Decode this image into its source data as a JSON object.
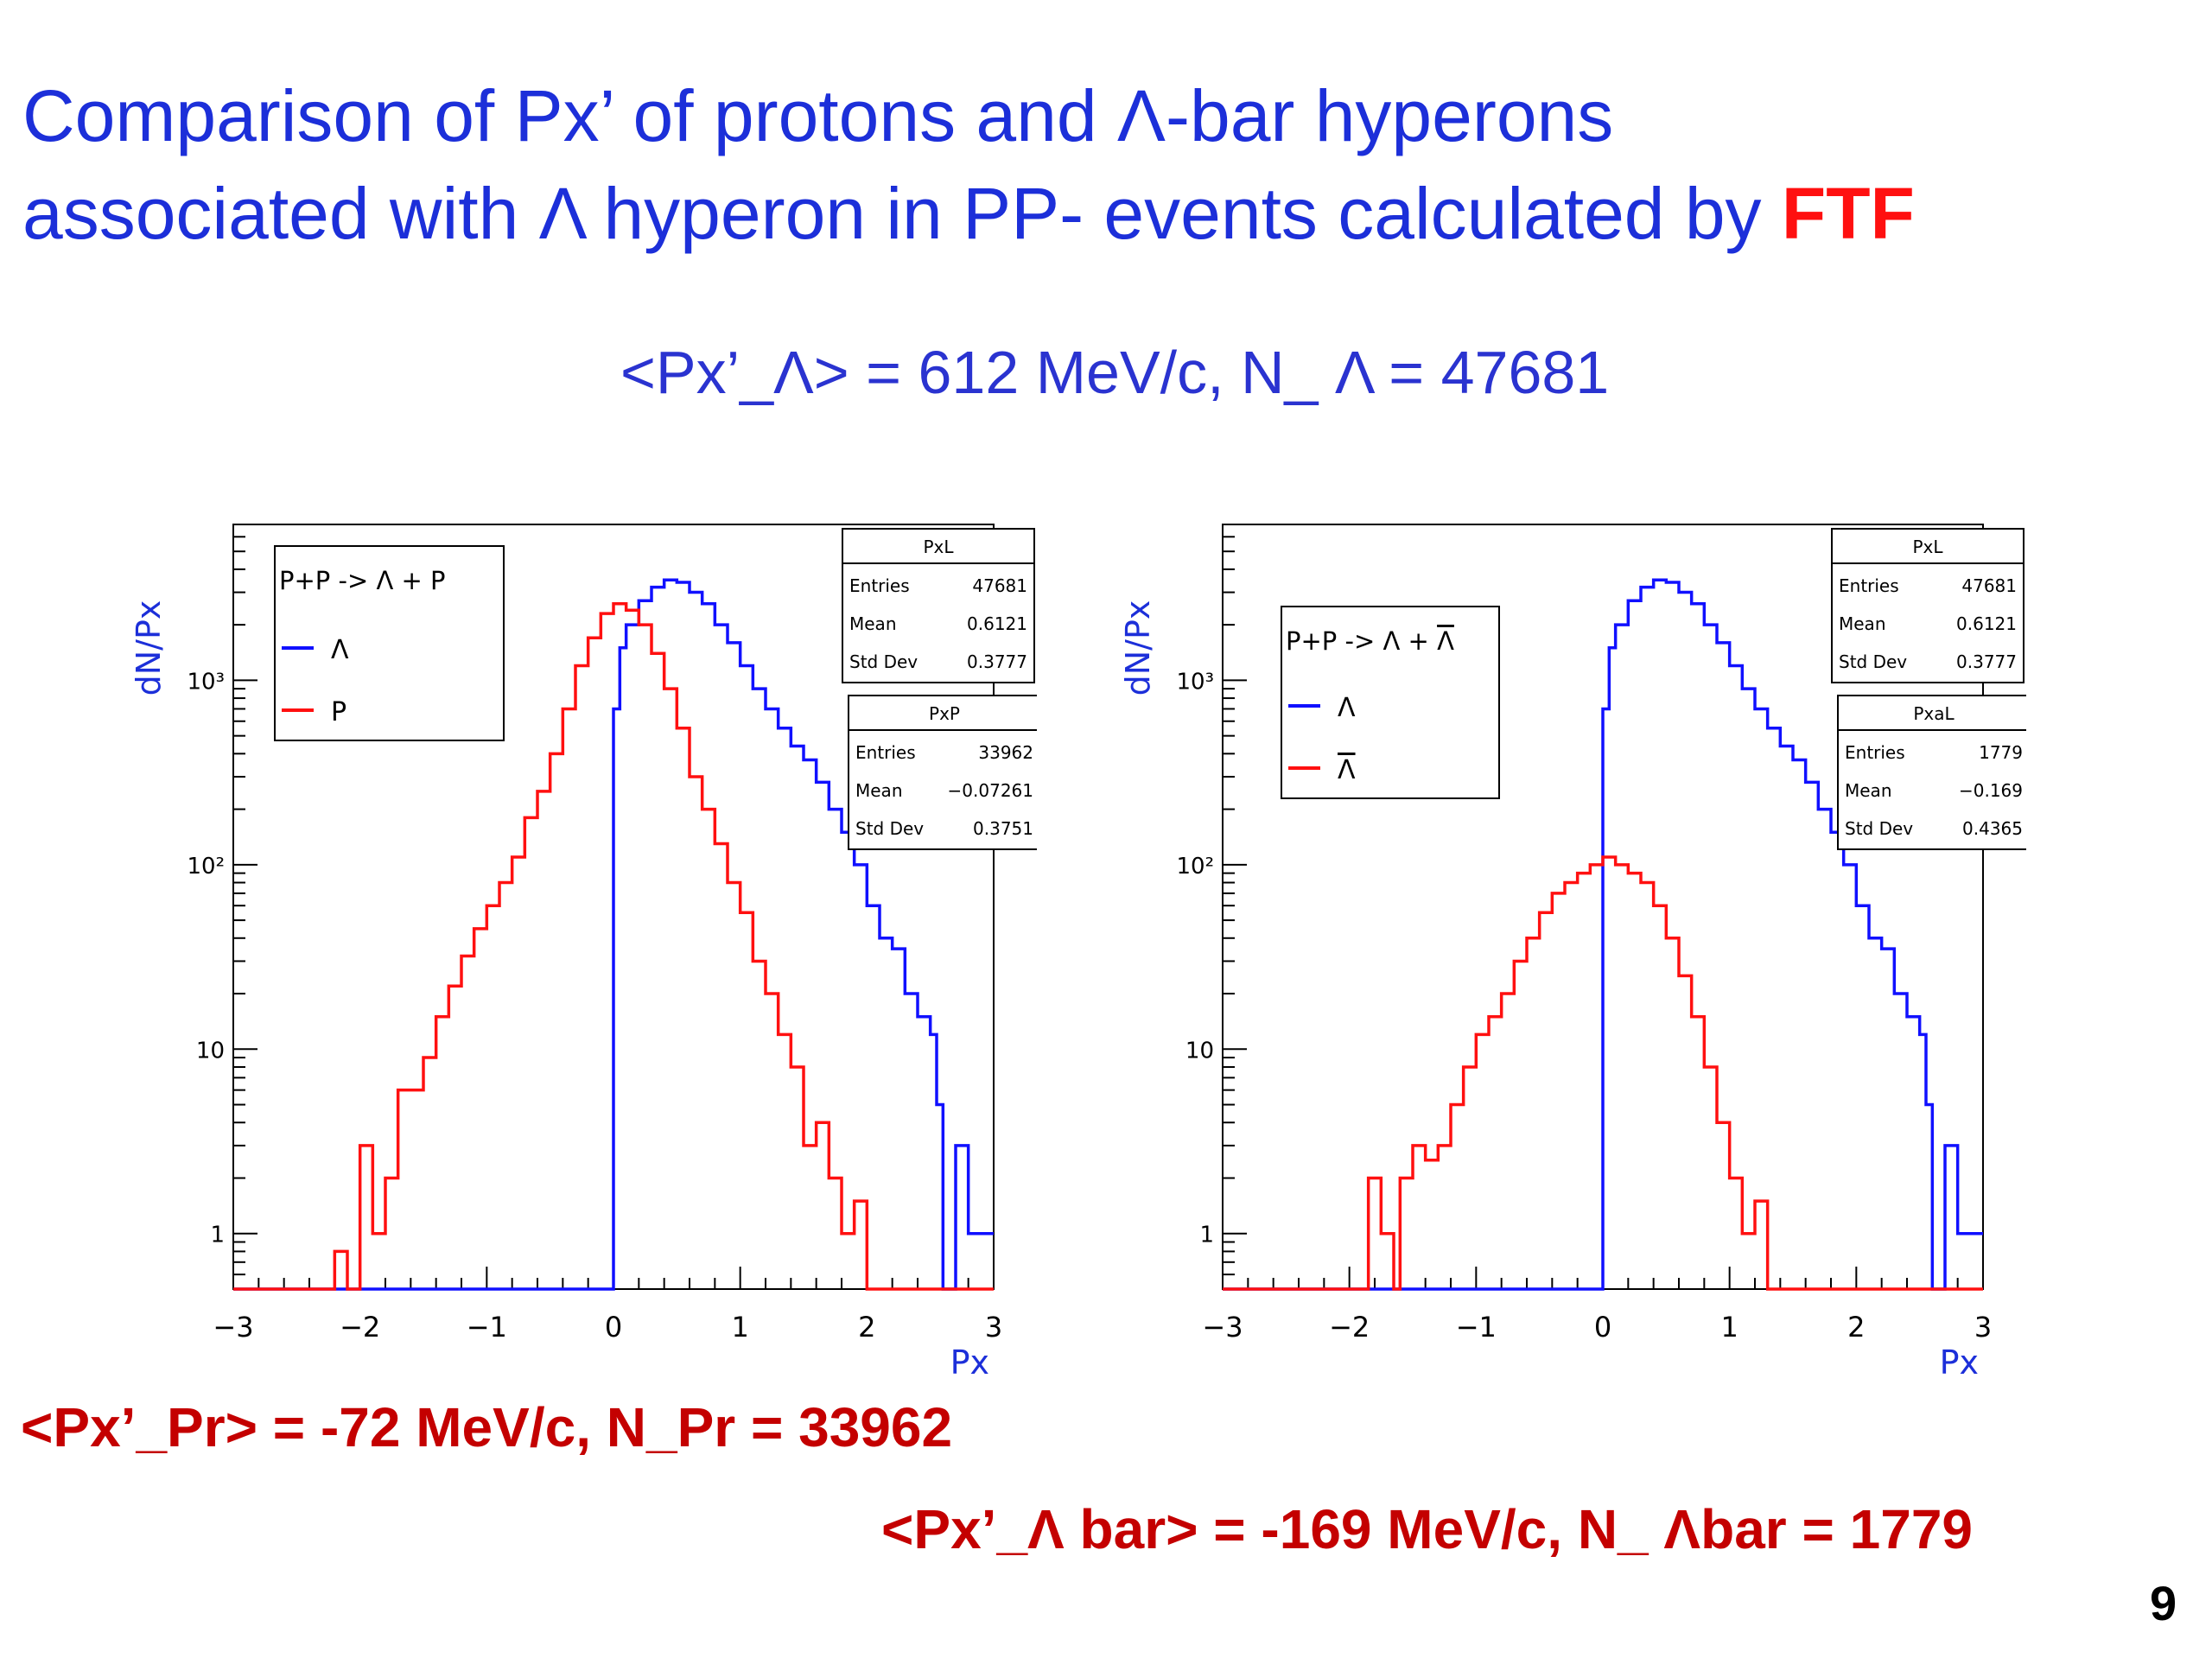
{
  "slide": {
    "title_line1": "Comparison of Px’ of protons and Λ-bar hyperons",
    "title_line2_prefix": "associated with Λ  hyperon  in PP- events calculated by ",
    "title_line2_highlight": "FTF",
    "lambda_summary": "<Px’_Λ> = 612 MeV/c,    N_ Λ = 47681",
    "proton_summary": "<Px’_Pr> = -72 MeV/c,  N_Pr = 33962",
    "lambdabar_summary": "<Px’_Λ bar> = -169 MeV/c,    N_ Λbar = 1779",
    "page_number": "9"
  },
  "colors": {
    "title_blue": "#1c2fd9",
    "highlight_red": "#ff1010",
    "stat_red": "#c40000",
    "lambda_line": "#1010ff",
    "second_line": "#ff1010"
  },
  "chart_data": [
    {
      "type": "line",
      "title": "",
      "xlabel": "Px",
      "ylabel": "dN/Px",
      "xlim": [
        -3,
        3
      ],
      "ylim": [
        0.5,
        7000
      ],
      "yscale": "log",
      "x_ticks": [
        "−3",
        "−2",
        "−1",
        "0",
        "1",
        "2",
        "3"
      ],
      "y_ticks": [
        {
          "value": 1,
          "label": "1"
        },
        {
          "value": 10,
          "label": "10"
        },
        {
          "value": 100,
          "label": "10²"
        },
        {
          "value": 1000,
          "label": "10³"
        }
      ],
      "legend": {
        "position": "top-left",
        "header": "P+P -> Λ + P",
        "entries": [
          {
            "label": "Λ",
            "color": "#1010ff"
          },
          {
            "label": "P",
            "color": "#ff1010"
          }
        ]
      },
      "stat_boxes": [
        {
          "name": "PxL",
          "rows": [
            [
              "Entries",
              "47681"
            ],
            [
              "Mean",
              "0.6121"
            ],
            [
              "Std Dev",
              "0.3777"
            ]
          ]
        },
        {
          "name": "PxP",
          "rows": [
            [
              "Entries",
              "33962"
            ],
            [
              "Mean",
              "−0.07261"
            ],
            [
              "Std Dev",
              "0.3751"
            ]
          ]
        }
      ],
      "series": [
        {
          "name": "Λ",
          "color": "#1010ff",
          "points": [
            [
              -3,
              0.5
            ],
            [
              0,
              0.5
            ],
            [
              0,
              700
            ],
            [
              0.05,
              1500
            ],
            [
              0.1,
              2000
            ],
            [
              0.2,
              2700
            ],
            [
              0.3,
              3200
            ],
            [
              0.4,
              3500
            ],
            [
              0.5,
              3400
            ],
            [
              0.6,
              3000
            ],
            [
              0.7,
              2600
            ],
            [
              0.8,
              2000
            ],
            [
              0.9,
              1600
            ],
            [
              1.0,
              1200
            ],
            [
              1.1,
              900
            ],
            [
              1.2,
              700
            ],
            [
              1.3,
              550
            ],
            [
              1.4,
              440
            ],
            [
              1.5,
              370
            ],
            [
              1.6,
              280
            ],
            [
              1.7,
              200
            ],
            [
              1.8,
              150
            ],
            [
              1.9,
              100
            ],
            [
              2.0,
              60
            ],
            [
              2.1,
              40
            ],
            [
              2.2,
              35
            ],
            [
              2.3,
              20
            ],
            [
              2.4,
              15
            ],
            [
              2.5,
              12
            ],
            [
              2.55,
              5
            ],
            [
              2.6,
              0.5
            ],
            [
              2.7,
              3
            ],
            [
              2.8,
              1
            ],
            [
              3.0,
              1
            ]
          ]
        },
        {
          "name": "P",
          "color": "#ff1010",
          "points": [
            [
              -3,
              0.5
            ],
            [
              -2.3,
              0.5
            ],
            [
              -2.2,
              0.8
            ],
            [
              -2.1,
              0.5
            ],
            [
              -2.0,
              3
            ],
            [
              -1.9,
              1
            ],
            [
              -1.8,
              2
            ],
            [
              -1.7,
              6
            ],
            [
              -1.6,
              6
            ],
            [
              -1.5,
              9
            ],
            [
              -1.4,
              15
            ],
            [
              -1.3,
              22
            ],
            [
              -1.2,
              32
            ],
            [
              -1.1,
              45
            ],
            [
              -1.0,
              60
            ],
            [
              -0.9,
              80
            ],
            [
              -0.8,
              110
            ],
            [
              -0.7,
              180
            ],
            [
              -0.6,
              250
            ],
            [
              -0.5,
              400
            ],
            [
              -0.4,
              700
            ],
            [
              -0.3,
              1200
            ],
            [
              -0.2,
              1700
            ],
            [
              -0.1,
              2300
            ],
            [
              0.0,
              2600
            ],
            [
              0.1,
              2400
            ],
            [
              0.2,
              2000
            ],
            [
              0.3,
              1400
            ],
            [
              0.4,
              900
            ],
            [
              0.5,
              550
            ],
            [
              0.6,
              300
            ],
            [
              0.7,
              200
            ],
            [
              0.8,
              130
            ],
            [
              0.9,
              80
            ],
            [
              1.0,
              55
            ],
            [
              1.1,
              30
            ],
            [
              1.2,
              20
            ],
            [
              1.3,
              12
            ],
            [
              1.4,
              8
            ],
            [
              1.5,
              3
            ],
            [
              1.6,
              4
            ],
            [
              1.7,
              2
            ],
            [
              1.8,
              1
            ],
            [
              1.9,
              1.5
            ],
            [
              2.0,
              0.5
            ],
            [
              3.0,
              0.5
            ]
          ]
        }
      ]
    },
    {
      "type": "line",
      "title": "",
      "xlabel": "Px",
      "ylabel": "dN/Px",
      "xlim": [
        -3,
        3
      ],
      "ylim": [
        0.5,
        7000
      ],
      "yscale": "log",
      "x_ticks": [
        "−3",
        "−2",
        "−1",
        "0",
        "1",
        "2",
        "3"
      ],
      "y_ticks": [
        {
          "value": 1,
          "label": "1"
        },
        {
          "value": 10,
          "label": "10"
        },
        {
          "value": 100,
          "label": "10²"
        },
        {
          "value": 1000,
          "label": "10³"
        }
      ],
      "legend": {
        "position": "top-left",
        "header_prefix": "P+P -> Λ + ",
        "header_bar_symbol": "Λ",
        "entries": [
          {
            "label": "Λ",
            "color": "#1010ff",
            "overline": false
          },
          {
            "label": "Λ",
            "color": "#ff1010",
            "overline": true
          }
        ]
      },
      "stat_boxes": [
        {
          "name": "PxL",
          "rows": [
            [
              "Entries",
              "47681"
            ],
            [
              "Mean",
              "0.6121"
            ],
            [
              "Std Dev",
              "0.3777"
            ]
          ]
        },
        {
          "name": "PxaL",
          "rows": [
            [
              "Entries",
              "1779"
            ],
            [
              "Mean",
              "−0.169"
            ],
            [
              "Std Dev",
              "0.4365"
            ]
          ]
        }
      ],
      "series": [
        {
          "name": "Λ",
          "color": "#1010ff",
          "points": [
            [
              -3,
              0.5
            ],
            [
              0,
              0.5
            ],
            [
              0,
              700
            ],
            [
              0.05,
              1500
            ],
            [
              0.1,
              2000
            ],
            [
              0.2,
              2700
            ],
            [
              0.3,
              3200
            ],
            [
              0.4,
              3500
            ],
            [
              0.5,
              3400
            ],
            [
              0.6,
              3000
            ],
            [
              0.7,
              2600
            ],
            [
              0.8,
              2000
            ],
            [
              0.9,
              1600
            ],
            [
              1.0,
              1200
            ],
            [
              1.1,
              900
            ],
            [
              1.2,
              700
            ],
            [
              1.3,
              550
            ],
            [
              1.4,
              440
            ],
            [
              1.5,
              370
            ],
            [
              1.6,
              280
            ],
            [
              1.7,
              200
            ],
            [
              1.8,
              150
            ],
            [
              1.9,
              100
            ],
            [
              2.0,
              60
            ],
            [
              2.1,
              40
            ],
            [
              2.2,
              35
            ],
            [
              2.3,
              20
            ],
            [
              2.4,
              15
            ],
            [
              2.5,
              12
            ],
            [
              2.55,
              5
            ],
            [
              2.6,
              0.5
            ],
            [
              2.7,
              3
            ],
            [
              2.8,
              1
            ],
            [
              3.0,
              1
            ]
          ]
        },
        {
          "name": "Λ bar",
          "color": "#ff1010",
          "points": [
            [
              -3,
              0.5
            ],
            [
              -1.9,
              0.5
            ],
            [
              -1.85,
              2
            ],
            [
              -1.75,
              1
            ],
            [
              -1.65,
              0.5
            ],
            [
              -1.6,
              2
            ],
            [
              -1.5,
              3
            ],
            [
              -1.4,
              2.5
            ],
            [
              -1.3,
              3
            ],
            [
              -1.2,
              5
            ],
            [
              -1.1,
              8
            ],
            [
              -1.0,
              12
            ],
            [
              -0.9,
              15
            ],
            [
              -0.8,
              20
            ],
            [
              -0.7,
              30
            ],
            [
              -0.6,
              40
            ],
            [
              -0.5,
              55
            ],
            [
              -0.4,
              70
            ],
            [
              -0.3,
              80
            ],
            [
              -0.2,
              90
            ],
            [
              -0.1,
              100
            ],
            [
              0.0,
              110
            ],
            [
              0.1,
              100
            ],
            [
              0.2,
              90
            ],
            [
              0.3,
              80
            ],
            [
              0.4,
              60
            ],
            [
              0.5,
              40
            ],
            [
              0.6,
              25
            ],
            [
              0.7,
              15
            ],
            [
              0.8,
              8
            ],
            [
              0.9,
              4
            ],
            [
              1.0,
              2
            ],
            [
              1.1,
              1
            ],
            [
              1.2,
              1.5
            ],
            [
              1.3,
              0.5
            ],
            [
              3.0,
              0.5
            ]
          ]
        }
      ]
    }
  ]
}
